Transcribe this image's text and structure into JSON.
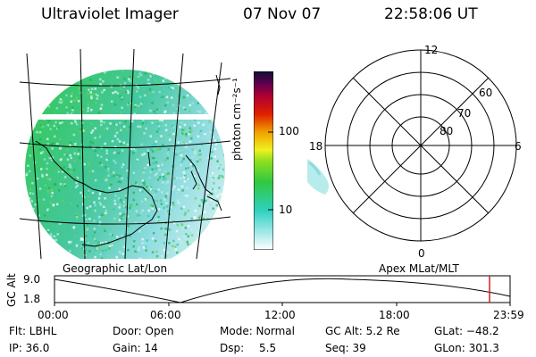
{
  "header": {
    "title": "Ultraviolet Imager",
    "date": "07 Nov 07",
    "time": "22:58:06 UT"
  },
  "colorbar": {
    "unit_label": "photon cm⁻²s⁻¹",
    "ticks": [
      "100",
      "10"
    ],
    "colors": [
      "#ffffff",
      "#a0e8e8",
      "#30d0c0",
      "#30c840",
      "#90e020",
      "#f0f020",
      "#f0a000",
      "#e02000",
      "#b00030",
      "#600050",
      "#101030"
    ]
  },
  "polar": {
    "clock_labels": {
      "top": "12",
      "left": "18",
      "right": "6",
      "bottom": "0"
    },
    "lat_labels": [
      "60",
      "70",
      "80"
    ]
  },
  "timeline": {
    "y_title": "GC Alt",
    "y_ticks": [
      "9.0",
      "1.8"
    ],
    "left_title": "Geographic Lat/Lon",
    "right_title": "Apex MLat/MLT",
    "x_ticks": [
      "00:00",
      "06:00",
      "12:00",
      "18:00",
      "23:59"
    ],
    "marker_color": "#d02020"
  },
  "footer": {
    "flt": "Flt: LBHL",
    "ip": "IP: 36.0",
    "door": "Door: Open",
    "gain": "Gain: 14",
    "mode": "Mode: Normal",
    "dsp_label": "Dsp:",
    "dsp_value": "5.5",
    "gc_alt": "GC Alt: 5.2 Re",
    "seq": "Seq: 39",
    "glat": "GLat: −48.2",
    "glon": "GLon: 301.3"
  }
}
